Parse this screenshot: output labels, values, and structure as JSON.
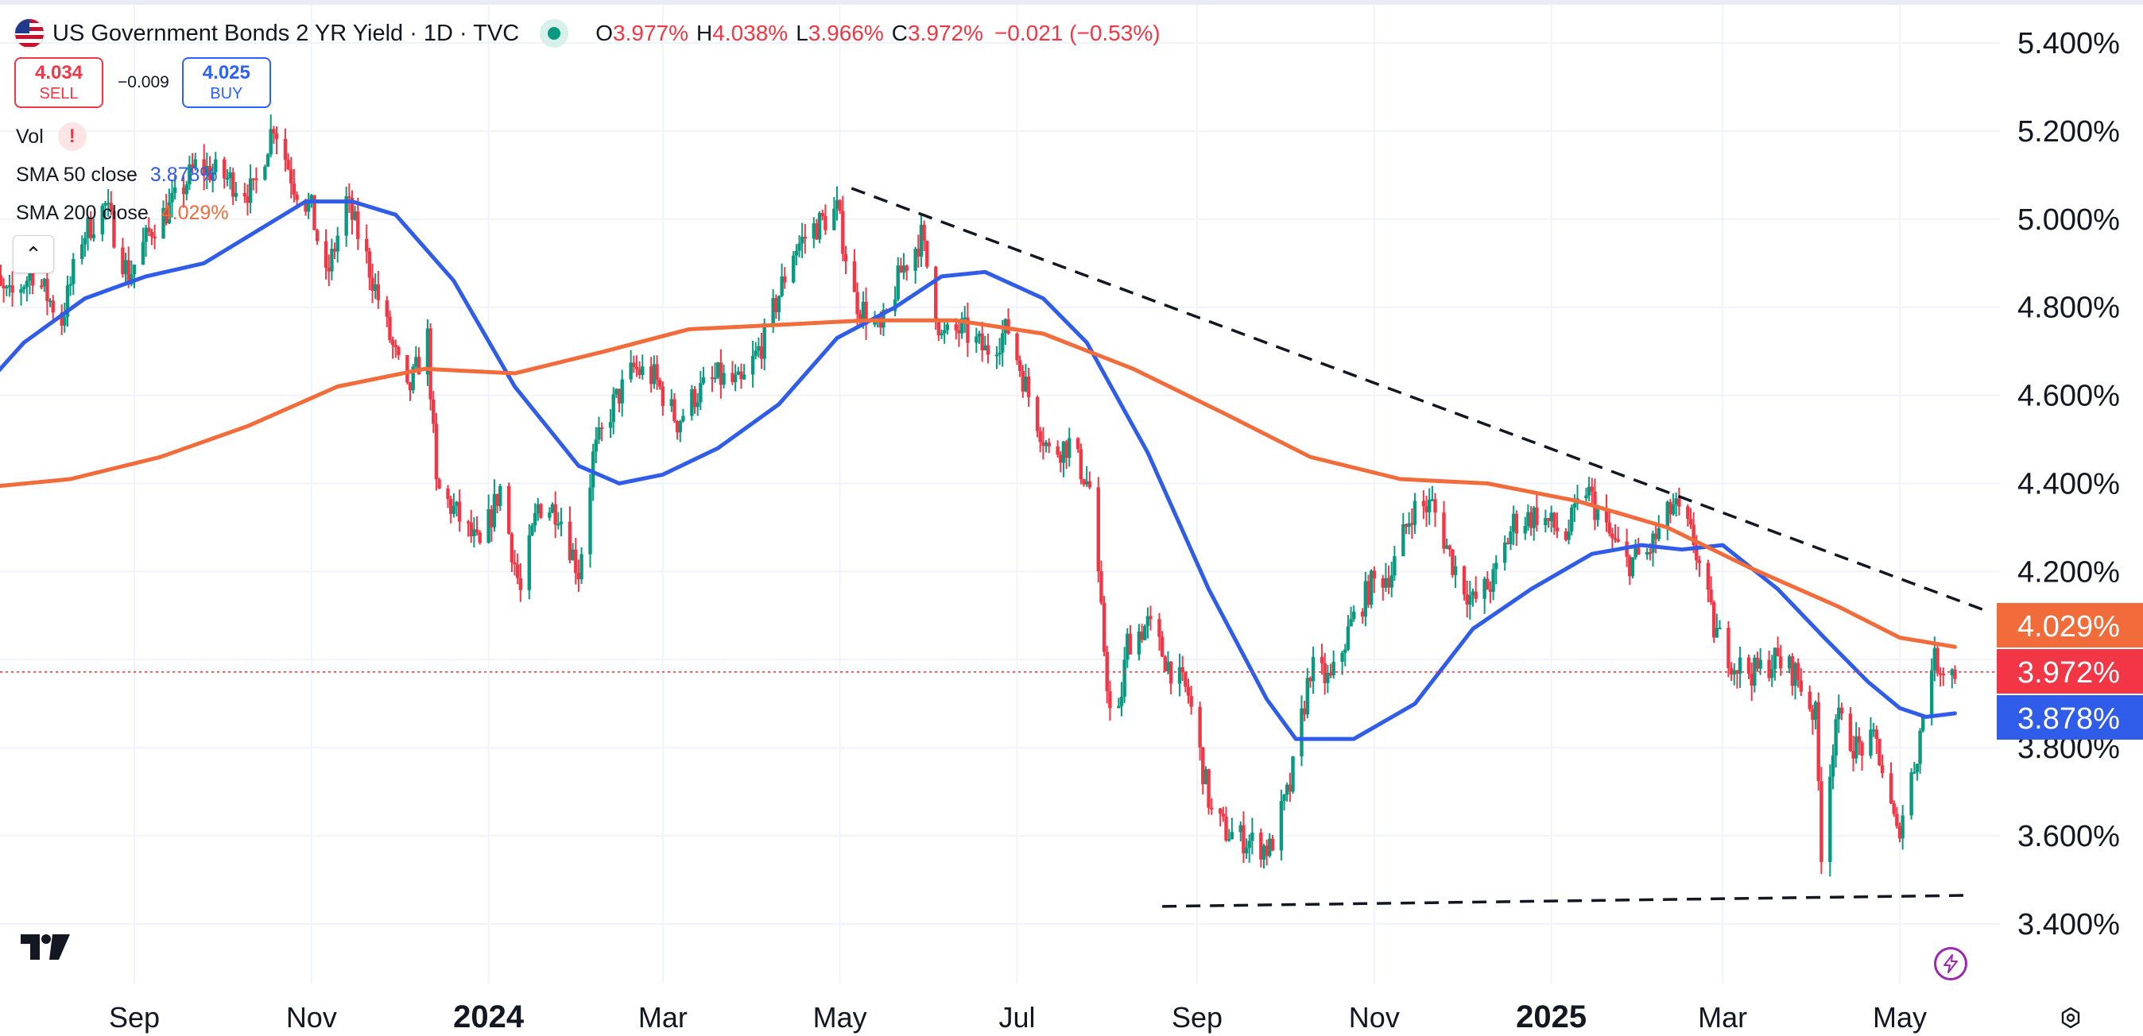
{
  "header": {
    "title": "US Government Bonds 2 YR Yield · 1D · TVC",
    "ohlc": {
      "o_label": "O",
      "o_value": "3.977%",
      "h_label": "H",
      "h_value": "4.038%",
      "l_label": "L",
      "l_value": "3.966%",
      "c_label": "C",
      "c_value": "3.972%",
      "change": "−0.021 (−0.53%)"
    },
    "sell": {
      "price": "4.034",
      "label": "SELL"
    },
    "buy": {
      "price": "4.025",
      "label": "BUY"
    },
    "spread": "−0.009"
  },
  "indicators": {
    "vol_label": "Vol",
    "sma50_label": "SMA 50 close",
    "sma50_value": "3.878%",
    "sma200_label": "SMA 200 close",
    "sma200_value": "4.029%"
  },
  "colors": {
    "up": "#089981",
    "down": "#f23645",
    "sma50": "#2f5ce8",
    "sma200": "#f26b3a",
    "trendline": "#131722",
    "grid": "#f0f3fa"
  },
  "chart_data": {
    "type": "line",
    "title": "US Government Bonds 2 YR Yield · 1D · TVC",
    "ylim": [
      3.3,
      5.47
    ],
    "y_ticks": [
      "5.400%",
      "5.200%",
      "5.000%",
      "4.800%",
      "4.600%",
      "4.400%",
      "4.200%",
      "3.800%",
      "3.600%",
      "3.400%"
    ],
    "y_tick_values": [
      5.4,
      5.2,
      5.0,
      4.8,
      4.6,
      4.4,
      4.2,
      3.8,
      3.6,
      3.4
    ],
    "x_ticks": [
      {
        "label": "Sep",
        "date": "2023-09-01",
        "bold": false
      },
      {
        "label": "Nov",
        "date": "2023-11-01",
        "bold": false
      },
      {
        "label": "2024",
        "date": "2024-01-01",
        "bold": true
      },
      {
        "label": "Mar",
        "date": "2024-03-01",
        "bold": false
      },
      {
        "label": "May",
        "date": "2024-05-01",
        "bold": false
      },
      {
        "label": "Jul",
        "date": "2024-07-01",
        "bold": false
      },
      {
        "label": "Sep",
        "date": "2024-09-01",
        "bold": false
      },
      {
        "label": "Nov",
        "date": "2024-11-01",
        "bold": false
      },
      {
        "label": "2025",
        "date": "2025-01-01",
        "bold": true
      },
      {
        "label": "Mar",
        "date": "2025-03-01",
        "bold": false
      },
      {
        "label": "May",
        "date": "2025-05-01",
        "bold": false
      }
    ],
    "x_range": [
      "2023-07-10",
      "2025-07-20"
    ],
    "last_price": 3.972,
    "price_labels": [
      {
        "name": "SMA 200 close",
        "value": 4.029,
        "text": "4.029%",
        "color": "#f26b3a"
      },
      {
        "name": "Last",
        "value": 3.972,
        "text": "3.972%",
        "color": "#f23645"
      },
      {
        "name": "SMA 50 close",
        "value": 3.878,
        "text": "3.878%",
        "color": "#2f5ce8"
      }
    ],
    "price_anchors": [
      [
        "2023-07-10",
        4.87
      ],
      [
        "2023-07-20",
        4.82
      ],
      [
        "2023-07-28",
        4.88
      ],
      [
        "2023-08-07",
        4.77
      ],
      [
        "2023-08-14",
        4.96
      ],
      [
        "2023-08-22",
        5.03
      ],
      [
        "2023-08-30",
        4.87
      ],
      [
        "2023-09-07",
        4.98
      ],
      [
        "2023-09-15",
        5.04
      ],
      [
        "2023-09-22",
        5.12
      ],
      [
        "2023-10-01",
        5.1
      ],
      [
        "2023-10-06",
        5.08
      ],
      [
        "2023-10-12",
        5.06
      ],
      [
        "2023-10-19",
        5.22
      ],
      [
        "2023-10-26",
        5.08
      ],
      [
        "2023-11-01",
        5.02
      ],
      [
        "2023-11-06",
        4.86
      ],
      [
        "2023-11-13",
        5.04
      ],
      [
        "2023-11-20",
        4.91
      ],
      [
        "2023-11-28",
        4.73
      ],
      [
        "2023-12-04",
        4.6
      ],
      [
        "2023-12-11",
        4.73
      ],
      [
        "2023-12-14",
        4.39
      ],
      [
        "2023-12-20",
        4.34
      ],
      [
        "2023-12-29",
        4.25
      ],
      [
        "2024-01-05",
        4.39
      ],
      [
        "2024-01-12",
        4.15
      ],
      [
        "2024-01-18",
        4.35
      ],
      [
        "2024-01-25",
        4.34
      ],
      [
        "2024-02-01",
        4.2
      ],
      [
        "2024-02-06",
        4.46
      ],
      [
        "2024-02-13",
        4.58
      ],
      [
        "2024-02-20",
        4.66
      ],
      [
        "2024-02-27",
        4.64
      ],
      [
        "2024-03-06",
        4.54
      ],
      [
        "2024-03-12",
        4.6
      ],
      [
        "2024-03-20",
        4.64
      ],
      [
        "2024-03-28",
        4.62
      ],
      [
        "2024-04-05",
        4.73
      ],
      [
        "2024-04-15",
        4.93
      ],
      [
        "2024-04-22",
        4.98
      ],
      [
        "2024-04-30",
        5.02
      ],
      [
        "2024-05-06",
        4.82
      ],
      [
        "2024-05-15",
        4.74
      ],
      [
        "2024-05-22",
        4.88
      ],
      [
        "2024-05-29",
        4.96
      ],
      [
        "2024-06-05",
        4.73
      ],
      [
        "2024-06-12",
        4.75
      ],
      [
        "2024-06-20",
        4.7
      ],
      [
        "2024-06-28",
        4.75
      ],
      [
        "2024-07-05",
        4.6
      ],
      [
        "2024-07-12",
        4.47
      ],
      [
        "2024-07-19",
        4.49
      ],
      [
        "2024-07-26",
        4.39
      ],
      [
        "2024-08-02",
        3.88
      ],
      [
        "2024-08-05",
        3.87
      ],
      [
        "2024-08-08",
        4.04
      ],
      [
        "2024-08-15",
        4.08
      ],
      [
        "2024-08-22",
        3.99
      ],
      [
        "2024-08-29",
        3.92
      ],
      [
        "2024-09-06",
        3.65
      ],
      [
        "2024-09-11",
        3.61
      ],
      [
        "2024-09-18",
        3.59
      ],
      [
        "2024-09-26",
        3.57
      ],
      [
        "2024-10-03",
        3.71
      ],
      [
        "2024-10-10",
        3.98
      ],
      [
        "2024-10-17",
        3.95
      ],
      [
        "2024-10-24",
        4.08
      ],
      [
        "2024-10-31",
        4.17
      ],
      [
        "2024-11-07",
        4.2
      ],
      [
        "2024-11-14",
        4.34
      ],
      [
        "2024-11-21",
        4.35
      ],
      [
        "2024-11-28",
        4.22
      ],
      [
        "2024-12-05",
        4.13
      ],
      [
        "2024-12-12",
        4.18
      ],
      [
        "2024-12-19",
        4.31
      ],
      [
        "2024-12-27",
        4.33
      ],
      [
        "2025-01-06",
        4.28
      ],
      [
        "2025-01-13",
        4.39
      ],
      [
        "2025-01-20",
        4.29
      ],
      [
        "2025-01-27",
        4.22
      ],
      [
        "2025-02-03",
        4.24
      ],
      [
        "2025-02-12",
        4.35
      ],
      [
        "2025-02-19",
        4.27
      ],
      [
        "2025-02-26",
        4.07
      ],
      [
        "2025-03-05",
        3.99
      ],
      [
        "2025-03-12",
        3.97
      ],
      [
        "2025-03-19",
        4.0
      ],
      [
        "2025-03-26",
        3.97
      ],
      [
        "2025-04-02",
        3.87
      ],
      [
        "2025-04-04",
        3.57
      ],
      [
        "2025-04-09",
        3.87
      ],
      [
        "2025-04-16",
        3.8
      ],
      [
        "2025-04-23",
        3.81
      ],
      [
        "2025-04-30",
        3.6
      ],
      [
        "2025-05-07",
        3.79
      ],
      [
        "2025-05-12",
        4.0
      ],
      [
        "2025-05-20",
        3.97
      ]
    ],
    "series": [
      {
        "name": "SMA 50 close",
        "color": "#2f5ce8",
        "points": [
          [
            "2023-07-10",
            4.61
          ],
          [
            "2023-07-25",
            4.72
          ],
          [
            "2023-08-15",
            4.82
          ],
          [
            "2023-09-05",
            4.87
          ],
          [
            "2023-09-25",
            4.9
          ],
          [
            "2023-10-15",
            4.98
          ],
          [
            "2023-10-30",
            5.04
          ],
          [
            "2023-11-15",
            5.04
          ],
          [
            "2023-11-30",
            5.01
          ],
          [
            "2023-12-20",
            4.86
          ],
          [
            "2024-01-10",
            4.62
          ],
          [
            "2024-02-01",
            4.44
          ],
          [
            "2024-02-15",
            4.4
          ],
          [
            "2024-03-01",
            4.42
          ],
          [
            "2024-03-20",
            4.48
          ],
          [
            "2024-04-10",
            4.58
          ],
          [
            "2024-04-30",
            4.73
          ],
          [
            "2024-05-20",
            4.8
          ],
          [
            "2024-06-05",
            4.87
          ],
          [
            "2024-06-20",
            4.88
          ],
          [
            "2024-07-10",
            4.82
          ],
          [
            "2024-07-25",
            4.72
          ],
          [
            "2024-08-15",
            4.47
          ],
          [
            "2024-09-05",
            4.16
          ],
          [
            "2024-09-25",
            3.91
          ],
          [
            "2024-10-05",
            3.82
          ],
          [
            "2024-10-25",
            3.82
          ],
          [
            "2024-11-15",
            3.9
          ],
          [
            "2024-12-05",
            4.07
          ],
          [
            "2024-12-25",
            4.16
          ],
          [
            "2025-01-15",
            4.24
          ],
          [
            "2025-02-01",
            4.26
          ],
          [
            "2025-02-15",
            4.25
          ],
          [
            "2025-03-01",
            4.26
          ],
          [
            "2025-03-20",
            4.16
          ],
          [
            "2025-04-05",
            4.05
          ],
          [
            "2025-04-20",
            3.95
          ],
          [
            "2025-05-01",
            3.89
          ],
          [
            "2025-05-10",
            3.87
          ],
          [
            "2025-05-20",
            3.878
          ]
        ]
      },
      {
        "name": "SMA 200 close",
        "color": "#f26b3a",
        "points": [
          [
            "2023-07-10",
            4.39
          ],
          [
            "2023-08-10",
            4.41
          ],
          [
            "2023-09-10",
            4.46
          ],
          [
            "2023-10-10",
            4.53
          ],
          [
            "2023-11-10",
            4.62
          ],
          [
            "2023-12-10",
            4.66
          ],
          [
            "2024-01-10",
            4.65
          ],
          [
            "2024-02-10",
            4.7
          ],
          [
            "2024-03-10",
            4.75
          ],
          [
            "2024-04-10",
            4.76
          ],
          [
            "2024-05-10",
            4.77
          ],
          [
            "2024-06-10",
            4.77
          ],
          [
            "2024-07-10",
            4.74
          ],
          [
            "2024-08-10",
            4.66
          ],
          [
            "2024-09-10",
            4.56
          ],
          [
            "2024-10-10",
            4.46
          ],
          [
            "2024-11-10",
            4.41
          ],
          [
            "2024-12-10",
            4.4
          ],
          [
            "2025-01-10",
            4.36
          ],
          [
            "2025-02-10",
            4.3
          ],
          [
            "2025-03-10",
            4.21
          ],
          [
            "2025-04-10",
            4.12
          ],
          [
            "2025-05-01",
            4.05
          ],
          [
            "2025-05-20",
            4.029
          ]
        ]
      }
    ],
    "annotations": [
      {
        "type": "dashed-trendline",
        "from": [
          "2024-05-05",
          5.07
        ],
        "to": [
          "2025-07-20",
          4.11
        ]
      },
      {
        "type": "dashed-trendline",
        "from": [
          "2024-08-20",
          3.44
        ],
        "to": [
          "2025-05-25",
          3.465
        ]
      }
    ],
    "grid": true,
    "legend_position": "top-left"
  }
}
